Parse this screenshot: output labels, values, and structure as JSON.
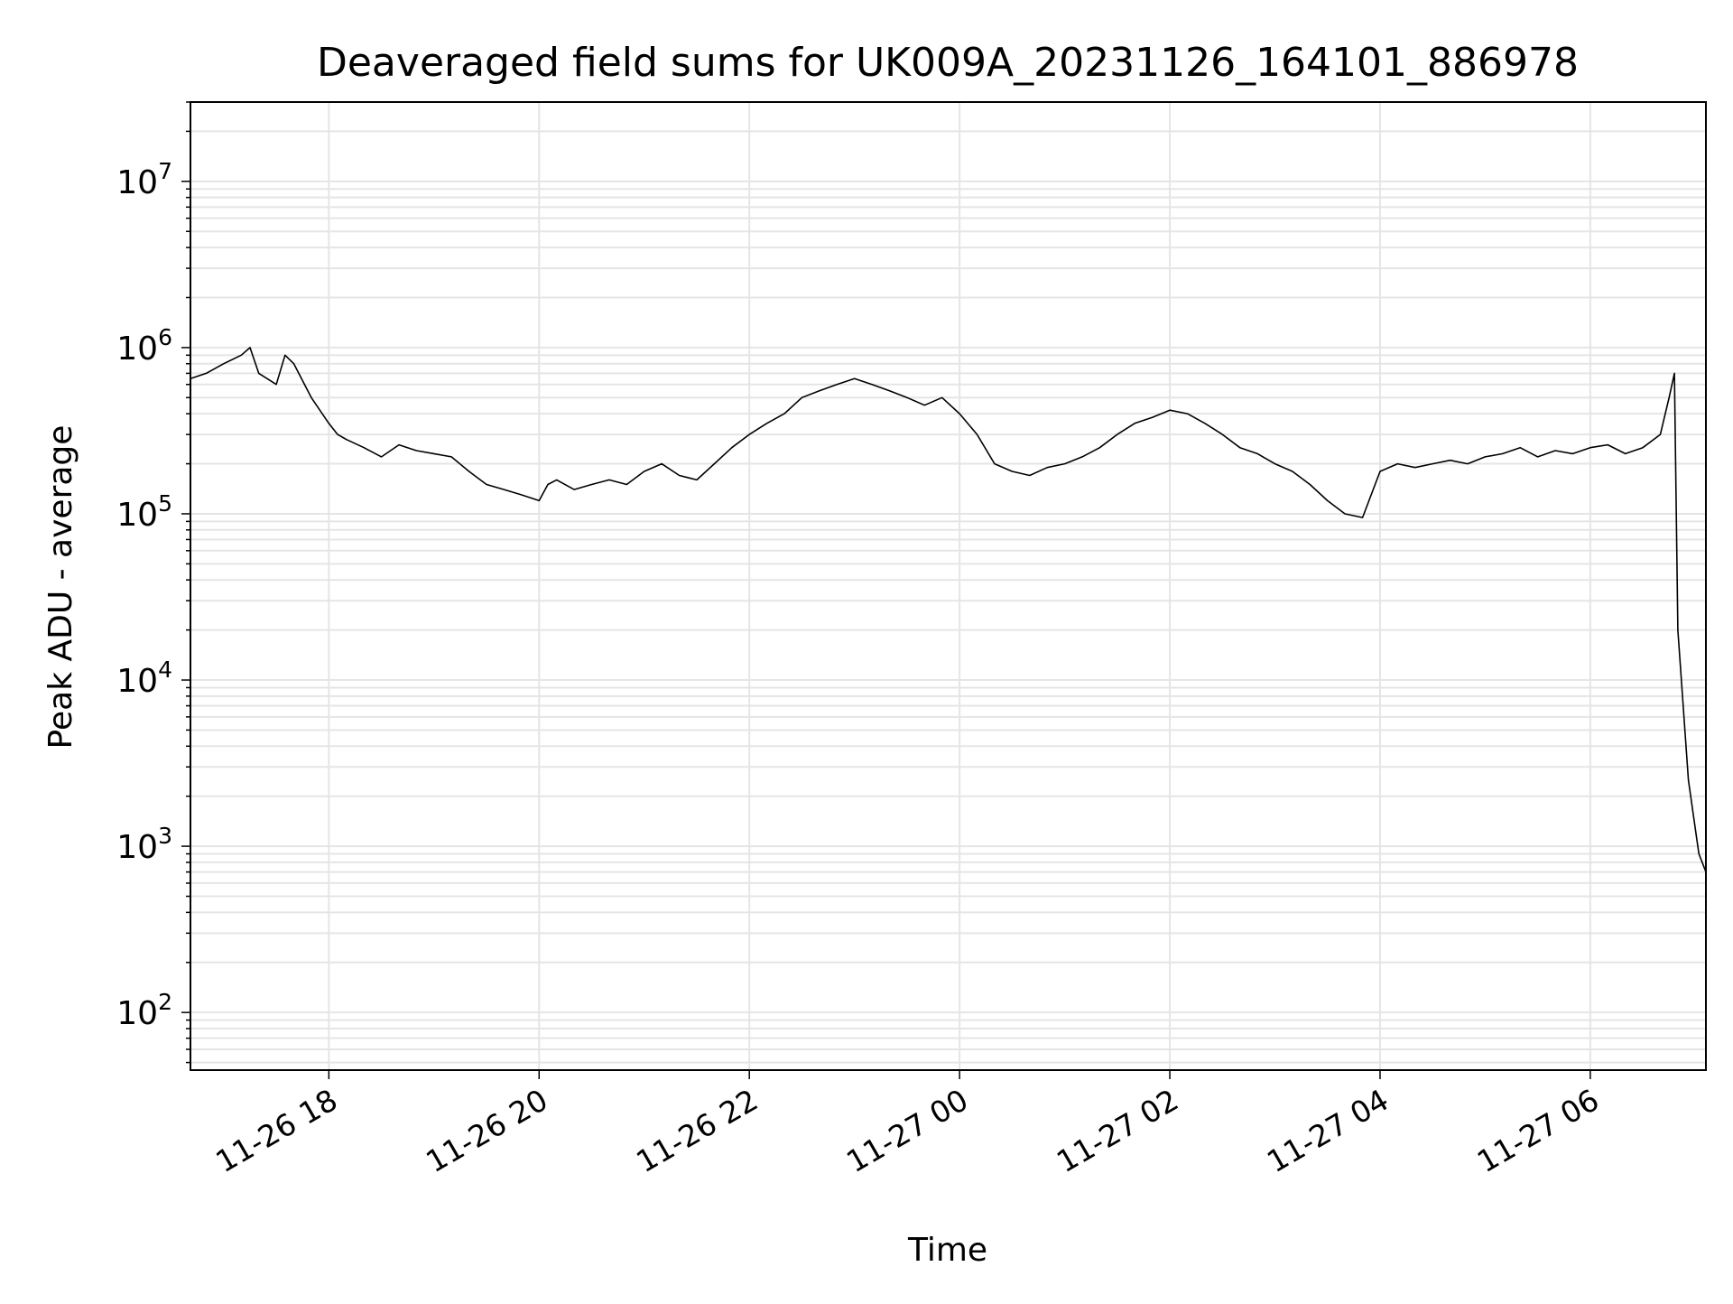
{
  "chart_data": {
    "type": "line",
    "title": "Deaveraged field sums for UK009A_20231126_164101_886978",
    "xlabel": "Time",
    "ylabel": "Peak ADU - average",
    "yscale": "log",
    "grid": true,
    "line_color": "#000000",
    "grid_color": "#e5e5e5",
    "xlim": [
      "2023-11-26 16:41",
      "2023-11-27 07:06"
    ],
    "ylim": [
      45,
      30000000
    ],
    "xticks": [
      {
        "value": "2023-11-26 18:00",
        "label": "11-26 18"
      },
      {
        "value": "2023-11-26 20:00",
        "label": "11-26 20"
      },
      {
        "value": "2023-11-26 22:00",
        "label": "11-26 22"
      },
      {
        "value": "2023-11-27 00:00",
        "label": "11-27 00"
      },
      {
        "value": "2023-11-27 02:00",
        "label": "11-27 02"
      },
      {
        "value": "2023-11-27 04:00",
        "label": "11-27 04"
      },
      {
        "value": "2023-11-27 06:00",
        "label": "11-27 06"
      }
    ],
    "yticks": [
      {
        "value": 100,
        "base": "10",
        "exp": "2"
      },
      {
        "value": 1000,
        "base": "10",
        "exp": "3"
      },
      {
        "value": 10000,
        "base": "10",
        "exp": "4"
      },
      {
        "value": 100000,
        "base": "10",
        "exp": "5"
      },
      {
        "value": 1000000,
        "base": "10",
        "exp": "6"
      },
      {
        "value": 10000000,
        "base": "10",
        "exp": "7"
      }
    ],
    "series": [
      {
        "x": [
          "2023-11-26 16:41",
          "2023-11-26 16:50",
          "2023-11-26 17:00",
          "2023-11-26 17:10",
          "2023-11-26 17:15",
          "2023-11-26 17:20",
          "2023-11-26 17:30",
          "2023-11-26 17:35",
          "2023-11-26 17:40",
          "2023-11-26 17:50",
          "2023-11-26 18:00",
          "2023-11-26 18:05",
          "2023-11-26 18:10",
          "2023-11-26 18:20",
          "2023-11-26 18:30",
          "2023-11-26 18:40",
          "2023-11-26 18:50",
          "2023-11-26 19:00",
          "2023-11-26 19:10",
          "2023-11-26 19:20",
          "2023-11-26 19:30",
          "2023-11-26 19:40",
          "2023-11-26 19:50",
          "2023-11-26 20:00",
          "2023-11-26 20:05",
          "2023-11-26 20:10",
          "2023-11-26 20:20",
          "2023-11-26 20:30",
          "2023-11-26 20:40",
          "2023-11-26 20:50",
          "2023-11-26 21:00",
          "2023-11-26 21:10",
          "2023-11-26 21:20",
          "2023-11-26 21:30",
          "2023-11-26 21:40",
          "2023-11-26 21:50",
          "2023-11-26 22:00",
          "2023-11-26 22:10",
          "2023-11-26 22:20",
          "2023-11-26 22:30",
          "2023-11-26 22:40",
          "2023-11-26 22:50",
          "2023-11-26 23:00",
          "2023-11-26 23:10",
          "2023-11-26 23:20",
          "2023-11-26 23:30",
          "2023-11-26 23:40",
          "2023-11-26 23:50",
          "2023-11-27 00:00",
          "2023-11-27 00:10",
          "2023-11-27 00:20",
          "2023-11-27 00:30",
          "2023-11-27 00:40",
          "2023-11-27 00:50",
          "2023-11-27 01:00",
          "2023-11-27 01:10",
          "2023-11-27 01:20",
          "2023-11-27 01:30",
          "2023-11-27 01:40",
          "2023-11-27 01:50",
          "2023-11-27 02:00",
          "2023-11-27 02:10",
          "2023-11-27 02:20",
          "2023-11-27 02:30",
          "2023-11-27 02:40",
          "2023-11-27 02:50",
          "2023-11-27 03:00",
          "2023-11-27 03:10",
          "2023-11-27 03:20",
          "2023-11-27 03:30",
          "2023-11-27 03:40",
          "2023-11-27 03:50",
          "2023-11-27 04:00",
          "2023-11-27 04:10",
          "2023-11-27 04:20",
          "2023-11-27 04:30",
          "2023-11-27 04:40",
          "2023-11-27 04:50",
          "2023-11-27 05:00",
          "2023-11-27 05:10",
          "2023-11-27 05:20",
          "2023-11-27 05:30",
          "2023-11-27 05:40",
          "2023-11-27 05:50",
          "2023-11-27 06:00",
          "2023-11-27 06:10",
          "2023-11-27 06:20",
          "2023-11-27 06:30",
          "2023-11-27 06:40",
          "2023-11-27 06:45",
          "2023-11-27 06:48",
          "2023-11-27 06:50",
          "2023-11-27 06:53",
          "2023-11-27 06:56",
          "2023-11-27 06:59",
          "2023-11-27 07:02",
          "2023-11-27 07:06"
        ],
        "y": [
          650000,
          700000,
          800000,
          900000,
          1000000,
          700000,
          600000,
          900000,
          800000,
          500000,
          350000,
          300000,
          280000,
          250000,
          220000,
          260000,
          240000,
          230000,
          220000,
          180000,
          150000,
          140000,
          130000,
          120000,
          150000,
          160000,
          140000,
          150000,
          160000,
          150000,
          180000,
          200000,
          170000,
          160000,
          200000,
          250000,
          300000,
          350000,
          400000,
          500000,
          550000,
          600000,
          650000,
          600000,
          550000,
          500000,
          450000,
          500000,
          400000,
          300000,
          200000,
          180000,
          170000,
          190000,
          200000,
          220000,
          250000,
          300000,
          350000,
          380000,
          420000,
          400000,
          350000,
          300000,
          250000,
          230000,
          200000,
          180000,
          150000,
          120000,
          100000,
          95000,
          180000,
          200000,
          190000,
          200000,
          210000,
          200000,
          220000,
          230000,
          250000,
          220000,
          240000,
          230000,
          250000,
          260000,
          230000,
          250000,
          300000,
          500000,
          700000,
          20000,
          7000,
          2500,
          1500,
          900,
          700
        ]
      }
    ]
  }
}
